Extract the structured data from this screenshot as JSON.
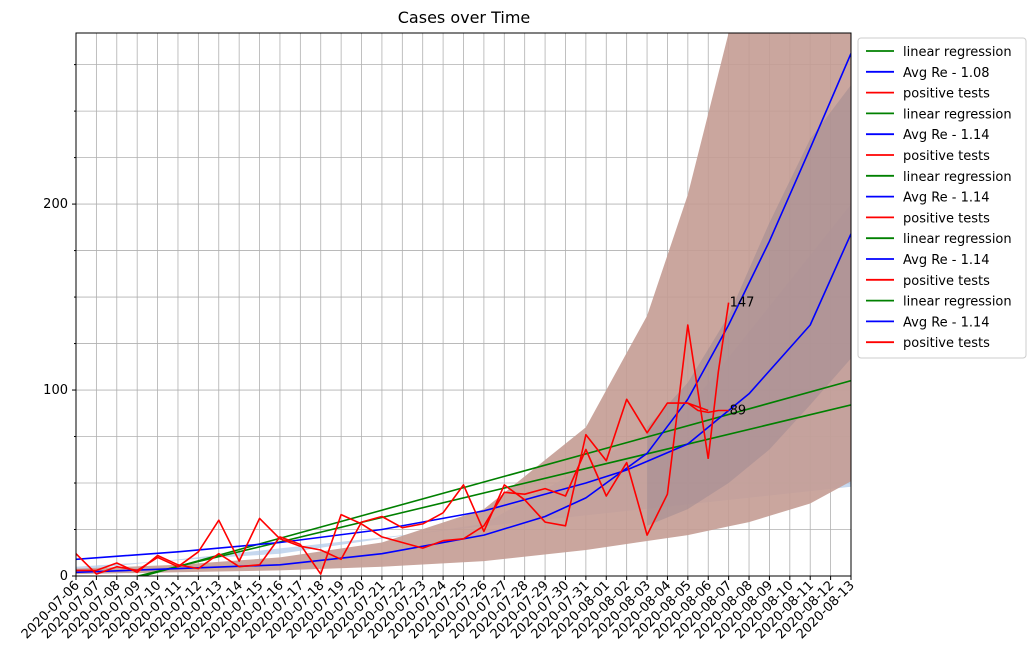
{
  "chart_data": {
    "type": "line",
    "title": "Cases over Time",
    "xlabel": "",
    "ylabel": "",
    "ylim": [
      0,
      292
    ],
    "y_ticks": [
      0,
      100,
      200
    ],
    "y_minor_step": 25,
    "grid": true,
    "legend_position": "outside-right",
    "x_dates": [
      "2020-07-06",
      "2020-07-07",
      "2020-07-08",
      "2020-07-09",
      "2020-07-10",
      "2020-07-11",
      "2020-07-12",
      "2020-07-13",
      "2020-07-14",
      "2020-07-15",
      "2020-07-16",
      "2020-07-17",
      "2020-07-18",
      "2020-07-19",
      "2020-07-20",
      "2020-07-21",
      "2020-07-22",
      "2020-07-23",
      "2020-07-24",
      "2020-07-25",
      "2020-07-26",
      "2020-07-27",
      "2020-07-28",
      "2020-07-29",
      "2020-07-30",
      "2020-07-31",
      "2020-08-01",
      "2020-08-02",
      "2020-08-03",
      "2020-08-04",
      "2020-08-05",
      "2020-08-06",
      "2020-08-07",
      "2020-08-08",
      "2020-08-09",
      "2020-08-10",
      "2020-08-11",
      "2020-08-12",
      "2020-08-13"
    ],
    "legend": [
      {
        "label": "linear regression",
        "color": "#008000"
      },
      {
        "label": "Avg Re - 1.08",
        "color": "#0000ff"
      },
      {
        "label": "positive tests",
        "color": "#ff0000"
      },
      {
        "label": "linear regression",
        "color": "#008000"
      },
      {
        "label": "Avg Re - 1.14",
        "color": "#0000ff"
      },
      {
        "label": "positive tests",
        "color": "#ff0000"
      },
      {
        "label": "linear regression",
        "color": "#008000"
      },
      {
        "label": "Avg Re - 1.14",
        "color": "#0000ff"
      },
      {
        "label": "positive tests",
        "color": "#ff0000"
      },
      {
        "label": "linear regression",
        "color": "#008000"
      },
      {
        "label": "Avg Re - 1.14",
        "color": "#0000ff"
      },
      {
        "label": "positive tests",
        "color": "#ff0000"
      },
      {
        "label": "linear regression",
        "color": "#008000"
      },
      {
        "label": "Avg Re - 1.14",
        "color": "#0000ff"
      },
      {
        "label": "positive tests",
        "color": "#ff0000"
      }
    ],
    "bands": [
      {
        "color": "#aec7e8",
        "opacity": 0.7,
        "lower": [
          [
            0,
            3
          ],
          [
            38,
            48
          ]
        ],
        "upper": [
          [
            0,
            5
          ],
          [
            10,
            12
          ],
          [
            20,
            28
          ],
          [
            30,
            90
          ],
          [
            38,
            200
          ]
        ]
      },
      {
        "color": "#c49c94",
        "opacity": 0.9,
        "lower": [
          [
            0,
            1
          ],
          [
            5,
            2
          ],
          [
            10,
            3
          ],
          [
            15,
            5
          ],
          [
            20,
            8
          ],
          [
            25,
            14
          ],
          [
            30,
            22
          ],
          [
            33,
            29
          ],
          [
            36,
            39
          ],
          [
            38,
            51
          ]
        ],
        "upper": [
          [
            0,
            4
          ],
          [
            5,
            6
          ],
          [
            10,
            10
          ],
          [
            15,
            18
          ],
          [
            20,
            36
          ],
          [
            25,
            80
          ],
          [
            28,
            140
          ],
          [
            30,
            205
          ],
          [
            32,
            292
          ]
        ]
      },
      {
        "color": "#a08a92",
        "opacity": 0.55,
        "lower": [
          [
            28,
            27
          ],
          [
            30,
            36
          ],
          [
            32,
            50
          ],
          [
            34,
            68
          ],
          [
            36,
            92
          ],
          [
            38,
            117
          ]
        ],
        "upper": [
          [
            28,
            80
          ],
          [
            30,
            104
          ],
          [
            32,
            140
          ],
          [
            34,
            190
          ],
          [
            36,
            235
          ],
          [
            38,
            264
          ]
        ]
      }
    ],
    "series": [
      {
        "name": "linear regression",
        "color": "#008000",
        "x": [
          0,
          38
        ],
        "y": [
          -8,
          92
        ]
      },
      {
        "name": "linear regression",
        "color": "#008000",
        "x": [
          0,
          38
        ],
        "y": [
          -10,
          105
        ]
      },
      {
        "name": "Avg Re - 1.08",
        "color": "#0000ff",
        "x": [
          0,
          5,
          10,
          15,
          20,
          25,
          27,
          30,
          33,
          36,
          38
        ],
        "y": [
          9,
          13,
          18,
          25,
          35,
          50,
          57,
          71,
          98,
          135,
          184
        ]
      },
      {
        "name": "Avg Re - 1.14",
        "color": "#0000ff",
        "x": [
          0,
          5,
          10,
          15,
          20,
          23,
          25,
          28,
          30,
          32,
          34,
          36,
          38
        ],
        "y": [
          2,
          4,
          6,
          12,
          22,
          32,
          42,
          66,
          95,
          135,
          180,
          230,
          281
        ]
      },
      {
        "name": "positive tests",
        "color": "#ff0000",
        "x": [
          0,
          1,
          2,
          3,
          4,
          5,
          6,
          7,
          8,
          9,
          10,
          11,
          12,
          13,
          14,
          15,
          16,
          17,
          18,
          19,
          20,
          21,
          22,
          23,
          24,
          25,
          26,
          27,
          28,
          29,
          30,
          31
        ],
        "y": [
          12,
          1,
          5,
          3,
          10,
          5,
          13,
          30,
          8,
          31,
          20,
          16,
          14,
          9,
          29,
          32,
          26,
          28,
          34,
          49,
          24,
          49,
          41,
          29,
          27,
          76,
          62,
          95,
          77,
          93,
          93,
          89
        ]
      },
      {
        "name": "positive tests",
        "color": "#ff0000",
        "x": [
          0,
          1,
          2,
          3,
          4,
          5,
          6,
          7,
          8,
          9,
          10,
          11,
          12,
          13,
          14,
          15,
          16,
          17,
          18,
          19,
          20,
          21,
          22,
          23,
          24,
          25,
          26,
          27,
          28,
          29,
          30,
          31
        ],
        "y": [
          3,
          3,
          7,
          2,
          11,
          6,
          4,
          12,
          5,
          6,
          21,
          17,
          1,
          33,
          28,
          21,
          18,
          15,
          19,
          20,
          27,
          45,
          44,
          47,
          43,
          68,
          43,
          61,
          22,
          44,
          135,
          63
        ]
      },
      {
        "name": "positive tests",
        "color": "#ff0000",
        "x": [
          30,
          30.5,
          31,
          31.5,
          32
        ],
        "y": [
          93,
          89,
          88,
          89,
          89
        ]
      },
      {
        "name": "positive tests",
        "color": "#ff0000",
        "x": [
          31,
          31.5,
          32
        ],
        "y": [
          63,
          110,
          147
        ]
      }
    ],
    "annotations": [
      {
        "text": "147",
        "x": 32,
        "y": 147
      },
      {
        "text": "89",
        "x": 32,
        "y": 89
      }
    ]
  }
}
